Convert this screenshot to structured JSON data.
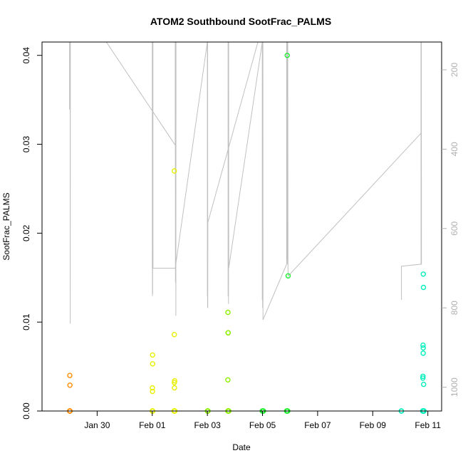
{
  "chart_data": {
    "type": "scatter",
    "title": "ATOM2 Southbound SootFrac_PALMS",
    "xlabel": "Date",
    "ylabel": "SootFrac_PALMS",
    "x_range_days": [
      "2017-01-28T00:00",
      "2017-02-11T12:00"
    ],
    "ylim": [
      0.0,
      0.0415
    ],
    "x_ticks": [
      {
        "date": "2017-01-30",
        "label": "Jan 30"
      },
      {
        "date": "2017-02-01",
        "label": "Feb 01"
      },
      {
        "date": "2017-02-03",
        "label": "Feb 03"
      },
      {
        "date": "2017-02-05",
        "label": "Feb 05"
      },
      {
        "date": "2017-02-07",
        "label": "Feb 07"
      },
      {
        "date": "2017-02-09",
        "label": "Feb 09"
      },
      {
        "date": "2017-02-11",
        "label": "Feb 11"
      }
    ],
    "y_ticks": [
      {
        "value": 0.0,
        "label": "0.00"
      },
      {
        "value": 0.01,
        "label": "0.01"
      },
      {
        "value": 0.02,
        "label": "0.02"
      },
      {
        "value": 0.03,
        "label": "0.03"
      },
      {
        "value": 0.04,
        "label": "0.04"
      }
    ],
    "right_axis": {
      "color": "#b0b0b0",
      "reversed": true,
      "ylim": [
        1060,
        130
      ],
      "ticks": [
        {
          "value": 200,
          "label": "200"
        },
        {
          "value": 400,
          "label": "400"
        },
        {
          "value": 600,
          "label": "600"
        },
        {
          "value": 800,
          "label": "800"
        },
        {
          "value": 1000,
          "label": "1000"
        }
      ]
    },
    "grid": false,
    "series": [
      {
        "color": "#ff8c00",
        "points": [
          [
            "2017-01-29T00:10",
            0.004
          ],
          [
            "2017-01-29T00:20",
            0.0029
          ],
          [
            "2017-01-29T00:00",
            0.0
          ],
          [
            "2017-01-29T00:06",
            0.0
          ],
          [
            "2017-01-29T00:12",
            0.0
          ],
          [
            "2017-01-29T00:18",
            0.0
          ],
          [
            "2017-01-29T00:24",
            0.0
          ]
        ]
      },
      {
        "color": "#e6f000",
        "points": [
          [
            "2017-02-01T00:05",
            0.0026
          ],
          [
            "2017-02-01T00:12",
            0.0022
          ],
          [
            "2017-02-01T00:18",
            0.0063
          ],
          [
            "2017-02-01T00:20",
            0.0053
          ],
          [
            "2017-02-01T00:00",
            0.0
          ],
          [
            "2017-02-01T00:06",
            0.0
          ],
          [
            "2017-02-01T00:12",
            0.0
          ],
          [
            "2017-02-01T00:18",
            0.0
          ],
          [
            "2017-02-01T00:24",
            0.0
          ],
          [
            "2017-02-01T19:10",
            0.027
          ],
          [
            "2017-02-01T19:10",
            0.0086
          ],
          [
            "2017-02-01T19:15",
            0.0032
          ],
          [
            "2017-02-01T19:20",
            0.0026
          ],
          [
            "2017-02-01T19:30",
            0.0034
          ],
          [
            "2017-02-01T19:00",
            0.0
          ],
          [
            "2017-02-01T19:08",
            0.0
          ],
          [
            "2017-02-01T19:16",
            0.0
          ],
          [
            "2017-02-01T19:24",
            0.0
          ],
          [
            "2017-02-01T19:32",
            0.0
          ],
          [
            "2017-02-01T19:40",
            0.0
          ]
        ]
      },
      {
        "color": "#8cf000",
        "points": [
          [
            "2017-02-03T00:00",
            0.0
          ],
          [
            "2017-02-03T00:08",
            0.0
          ],
          [
            "2017-02-03T00:16",
            0.0
          ],
          [
            "2017-02-03T00:24",
            0.0
          ],
          [
            "2017-02-03T00:32",
            0.0
          ],
          [
            "2017-02-03T17:50",
            0.0035
          ],
          [
            "2017-02-03T17:55",
            0.0111
          ],
          [
            "2017-02-03T18:00",
            0.0088
          ],
          [
            "2017-02-03T18:10",
            0.0088
          ],
          [
            "2017-02-03T17:50",
            0.0
          ],
          [
            "2017-02-03T18:00",
            0.0
          ],
          [
            "2017-02-03T18:10",
            0.0
          ],
          [
            "2017-02-03T18:20",
            0.0
          ],
          [
            "2017-02-03T18:30",
            0.0
          ],
          [
            "2017-02-03T18:40",
            0.0
          ]
        ]
      },
      {
        "color": "#22ee33",
        "points": [
          [
            "2017-02-04T23:50",
            0.0
          ],
          [
            "2017-02-05T00:00",
            0.0
          ],
          [
            "2017-02-05T00:10",
            0.0
          ],
          [
            "2017-02-05T00:20",
            0.0
          ],
          [
            "2017-02-05T00:30",
            0.0
          ],
          [
            "2017-02-05T00:40",
            0.0
          ],
          [
            "2017-02-05T00:50",
            0.0
          ],
          [
            "2017-02-05T21:30",
            0.04
          ],
          [
            "2017-02-05T22:20",
            0.0152
          ],
          [
            "2017-02-05T21:00",
            0.0
          ],
          [
            "2017-02-05T21:10",
            0.0
          ],
          [
            "2017-02-05T21:20",
            0.0
          ],
          [
            "2017-02-05T21:30",
            0.0
          ],
          [
            "2017-02-05T21:40",
            0.0
          ],
          [
            "2017-02-05T21:50",
            0.0
          ],
          [
            "2017-02-05T22:00",
            0.0
          ]
        ]
      },
      {
        "color": "#00eebb",
        "points": [
          [
            "2017-02-10T00:50",
            0.0
          ],
          [
            "2017-02-10T01:00",
            0.0
          ],
          [
            "2017-02-10T19:40",
            0.0037
          ],
          [
            "2017-02-10T19:45",
            0.0039
          ],
          [
            "2017-02-10T19:50",
            0.0074
          ],
          [
            "2017-02-10T19:55",
            0.0065
          ],
          [
            "2017-02-10T20:00",
            0.0071
          ],
          [
            "2017-02-10T20:05",
            0.0154
          ],
          [
            "2017-02-10T20:10",
            0.0139
          ],
          [
            "2017-02-10T20:20",
            0.003
          ],
          [
            "2017-02-10T19:30",
            0.0
          ],
          [
            "2017-02-10T19:40",
            0.0
          ],
          [
            "2017-02-10T19:50",
            0.0
          ],
          [
            "2017-02-10T20:00",
            0.0
          ],
          [
            "2017-02-10T20:10",
            0.0
          ],
          [
            "2017-02-10T20:20",
            0.0
          ],
          [
            "2017-02-10T20:30",
            0.0
          ],
          [
            "2017-02-10T20:40",
            0.0
          ]
        ]
      }
    ],
    "pressure_trace": {
      "color": "#c0c0c0",
      "points": [
        [
          "2017-01-29T00:00",
          130
        ],
        [
          "2017-01-29T00:00",
          300
        ],
        [
          "2017-01-29T00:10",
          130
        ],
        [
          "2017-01-29T00:30",
          130
        ],
        [
          "2017-01-29T00:35",
          840
        ],
        [
          "2017-01-29T00:40",
          130
        ],
        [
          "2017-01-30T08:00",
          130
        ],
        [
          "2017-02-01T20:00",
          390
        ],
        [
          "2017-02-01T20:00",
          130
        ],
        [
          "2017-02-01T20:10",
          735
        ],
        [
          "2017-02-01T20:20",
          130
        ],
        [
          "2017-02-01T20:25",
          740
        ],
        [
          "2017-02-01T20:30",
          130
        ],
        [
          "2017-02-01T20:35",
          820
        ],
        [
          "2017-02-01T20:40",
          130
        ],
        [
          "2017-02-01T00:00",
          130
        ],
        [
          "2017-02-01T00:00",
          700
        ],
        [
          "2017-02-01T00:05",
          130
        ],
        [
          "2017-02-01T00:10",
          770
        ],
        [
          "2017-02-01T00:15",
          130
        ],
        [
          "2017-02-01T00:20",
          765
        ],
        [
          "2017-02-01T00:25",
          130
        ],
        [
          "2017-02-01T00:30",
          550
        ],
        [
          "2017-02-01T00:35",
          130
        ],
        [
          "2017-02-01T00:40",
          700
        ],
        [
          "2017-02-01T20:00",
          700
        ],
        [
          "2017-02-03T00:00",
          130
        ],
        [
          "2017-02-03T00:00",
          770
        ],
        [
          "2017-02-03T00:05",
          130
        ],
        [
          "2017-02-03T00:10",
          800
        ],
        [
          "2017-02-03T00:15",
          130
        ],
        [
          "2017-02-03T00:20",
          800
        ],
        [
          "2017-02-03T00:25",
          585
        ],
        [
          "2017-02-04T20:00",
          130
        ],
        [
          "2017-02-03T18:00",
          130
        ],
        [
          "2017-02-03T18:00",
          770
        ],
        [
          "2017-02-03T18:10",
          130
        ],
        [
          "2017-02-03T18:15",
          770
        ],
        [
          "2017-02-03T18:20",
          130
        ],
        [
          "2017-02-03T18:25",
          790
        ],
        [
          "2017-02-03T18:30",
          130
        ],
        [
          "2017-02-03T18:35",
          700
        ],
        [
          "2017-02-04T23:50",
          130
        ],
        [
          "2017-02-04T23:50",
          780
        ],
        [
          "2017-02-05T00:00",
          130
        ],
        [
          "2017-02-05T00:05",
          800
        ],
        [
          "2017-02-05T00:10",
          130
        ],
        [
          "2017-02-05T00:15",
          700
        ],
        [
          "2017-02-05T00:20",
          130
        ],
        [
          "2017-02-05T00:25",
          830
        ],
        [
          "2017-02-05T21:00",
          690
        ],
        [
          "2017-02-05T21:00",
          130
        ],
        [
          "2017-02-05T21:10",
          680
        ],
        [
          "2017-02-05T21:20",
          130
        ],
        [
          "2017-02-05T21:30",
          650
        ],
        [
          "2017-02-05T21:40",
          130
        ],
        [
          "2017-02-05T21:45",
          690
        ],
        [
          "2017-02-05T22:00",
          130
        ],
        [
          "2017-02-05T22:10",
          700
        ],
        [
          "2017-02-05T22:20",
          720
        ],
        [
          "2017-02-10T18:00",
          360
        ],
        [
          "2017-02-10T18:00",
          130
        ],
        [
          "2017-02-10T18:05",
          690
        ],
        [
          "2017-02-10T18:10",
          130
        ],
        [
          "2017-02-10T18:15",
          690
        ],
        [
          "2017-02-10T18:20",
          130
        ],
        [
          "2017-02-10T18:25",
          690
        ],
        [
          "2017-02-10T01:00",
          695
        ],
        [
          "2017-02-10T01:00",
          780
        ]
      ]
    }
  }
}
